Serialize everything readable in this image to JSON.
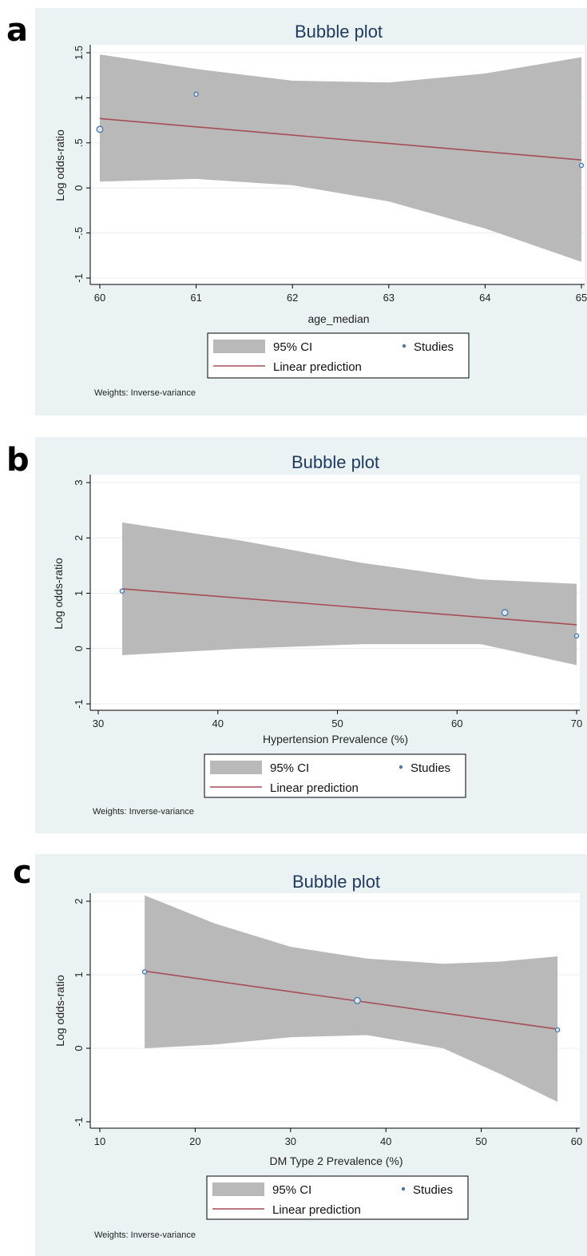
{
  "panel_letters": [
    "a",
    "b",
    "c"
  ],
  "colors": {
    "background": "#eaf2f3",
    "plot_area": "#ffffff",
    "ci_band": "#b9b9b9",
    "fit_line": "#a64d55",
    "points": "#4a76a8",
    "title": "#1e3a5f"
  },
  "chart_data": [
    {
      "type": "scatter",
      "title": "Bubble plot",
      "xlabel": "age_median",
      "ylabel": "Log odds-ratio",
      "xlim": [
        60,
        65
      ],
      "ylim": [
        -1,
        1.5
      ],
      "xticks": [
        "60",
        "61",
        "62",
        "63",
        "64",
        "65"
      ],
      "yticks": [
        "-1",
        "-.5",
        "0",
        ".5",
        "1",
        "1.5"
      ],
      "ytick_values": [
        -1,
        -0.5,
        0,
        0.5,
        1,
        1.5
      ],
      "xtick_values": [
        60,
        61,
        62,
        63,
        64,
        65
      ],
      "points": [
        {
          "x": 60,
          "y": 0.65,
          "weight": 2
        },
        {
          "x": 61,
          "y": 1.04,
          "weight": 1
        },
        {
          "x": 65,
          "y": 0.25,
          "weight": 1
        }
      ],
      "fit": {
        "x": [
          60,
          65
        ],
        "y": [
          0.77,
          0.31
        ]
      },
      "ci": {
        "x": [
          60,
          61,
          62,
          63,
          64,
          65
        ],
        "lower": [
          0.07,
          0.1,
          0.03,
          -0.15,
          -0.45,
          -0.82
        ],
        "upper": [
          1.48,
          1.32,
          1.19,
          1.17,
          1.27,
          1.45
        ]
      },
      "legend": {
        "ci": "95% CI",
        "studies": "Studies",
        "fit": "Linear prediction"
      },
      "note": "Weights: Inverse-variance"
    },
    {
      "type": "scatter",
      "title": "Bubble plot",
      "xlabel": "Hypertension Prevalence (%)",
      "ylabel": "Log odds-ratio",
      "xlim": [
        30,
        70
      ],
      "ylim": [
        -1,
        3
      ],
      "xticks": [
        "30",
        "40",
        "50",
        "60",
        "70"
      ],
      "yticks": [
        "-1",
        "0",
        "1",
        "2",
        "3"
      ],
      "ytick_values": [
        -1,
        0,
        1,
        2,
        3
      ],
      "xtick_values": [
        30,
        40,
        50,
        60,
        70
      ],
      "points": [
        {
          "x": 32,
          "y": 1.04,
          "weight": 1
        },
        {
          "x": 64,
          "y": 0.65,
          "weight": 2
        },
        {
          "x": 70,
          "y": 0.23,
          "weight": 1
        }
      ],
      "fit": {
        "x": [
          32,
          70
        ],
        "y": [
          1.08,
          0.43
        ]
      },
      "ci": {
        "x": [
          32,
          42,
          52,
          62,
          70
        ],
        "lower": [
          -0.12,
          0.0,
          0.08,
          0.08,
          -0.3
        ],
        "upper": [
          2.28,
          1.95,
          1.55,
          1.25,
          1.17
        ]
      },
      "legend": {
        "ci": "95% CI",
        "studies": "Studies",
        "fit": "Linear prediction"
      },
      "note": "Weights: Inverse-variance"
    },
    {
      "type": "scatter",
      "title": "Bubble plot",
      "xlabel": "DM Type 2 Prevalence (%)",
      "ylabel": "Log odds-ratio",
      "xlim": [
        10,
        60
      ],
      "ylim": [
        -1,
        2
      ],
      "xticks": [
        "10",
        "20",
        "30",
        "40",
        "50",
        "60"
      ],
      "yticks": [
        "-1",
        "0",
        "1",
        "2"
      ],
      "ytick_values": [
        -1,
        0,
        1,
        2
      ],
      "xtick_values": [
        10,
        20,
        30,
        40,
        50,
        60
      ],
      "points": [
        {
          "x": 14.7,
          "y": 1.04,
          "weight": 1
        },
        {
          "x": 37,
          "y": 0.65,
          "weight": 2
        },
        {
          "x": 58,
          "y": 0.25,
          "weight": 1
        }
      ],
      "fit": {
        "x": [
          14.7,
          58
        ],
        "y": [
          1.05,
          0.26
        ]
      },
      "ci": {
        "x": [
          14.7,
          22,
          30,
          38,
          46,
          52,
          58
        ],
        "lower": [
          0.0,
          0.05,
          0.15,
          0.18,
          0.0,
          -0.35,
          -0.73
        ],
        "upper": [
          2.08,
          1.7,
          1.38,
          1.22,
          1.15,
          1.18,
          1.25
        ]
      },
      "legend": {
        "ci": "95% CI",
        "studies": "Studies",
        "fit": "Linear prediction"
      },
      "note": "Weights: Inverse-variance"
    }
  ]
}
